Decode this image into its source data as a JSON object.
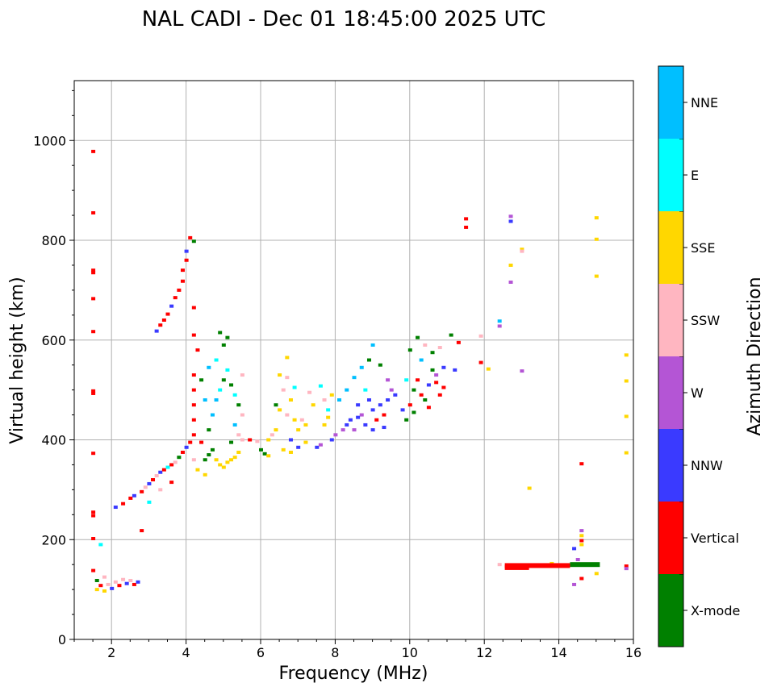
{
  "chart_data": {
    "type": "scatter",
    "title": "NAL CADI - Dec 01 18:45:00 2025 UTC",
    "xlabel": "Frequency (MHz)",
    "ylabel": "Virtual height (km)",
    "xlim": [
      1,
      16
    ],
    "ylim": [
      0,
      1120
    ],
    "xticks": [
      2,
      4,
      6,
      8,
      10,
      12,
      14,
      16
    ],
    "yticks": [
      0,
      200,
      400,
      600,
      800,
      1000
    ],
    "grid": true,
    "colorbar": {
      "label": "Azimuth Direction",
      "categories": [
        {
          "name": "X-mode",
          "color": "#008000"
        },
        {
          "name": "Vertical",
          "color": "#ff0000"
        },
        {
          "name": "NNW",
          "color": "#3a3aff"
        },
        {
          "name": "W",
          "color": "#b455d5"
        },
        {
          "name": "SSW",
          "color": "#ffb6c1"
        },
        {
          "name": "SSE",
          "color": "#ffd700"
        },
        {
          "name": "E",
          "color": "#00ffff"
        },
        {
          "name": "NNE",
          "color": "#00bfff"
        }
      ]
    },
    "points": [
      {
        "f": 1.5,
        "h": 978,
        "c": "Vertical"
      },
      {
        "f": 1.5,
        "h": 855,
        "c": "Vertical"
      },
      {
        "f": 1.5,
        "h": 740,
        "c": "Vertical"
      },
      {
        "f": 1.5,
        "h": 735,
        "c": "Vertical"
      },
      {
        "f": 1.5,
        "h": 617,
        "c": "Vertical"
      },
      {
        "f": 1.5,
        "h": 498,
        "c": "Vertical"
      },
      {
        "f": 1.5,
        "h": 493,
        "c": "Vertical"
      },
      {
        "f": 1.5,
        "h": 373,
        "c": "Vertical"
      },
      {
        "f": 1.5,
        "h": 255,
        "c": "Vertical"
      },
      {
        "f": 1.5,
        "h": 248,
        "c": "Vertical"
      },
      {
        "f": 1.5,
        "h": 202,
        "c": "Vertical"
      },
      {
        "f": 1.5,
        "h": 138,
        "c": "Vertical"
      },
      {
        "f": 1.5,
        "h": 683,
        "c": "Vertical"
      },
      {
        "f": 1.6,
        "h": 100,
        "c": "SSE"
      },
      {
        "f": 1.7,
        "h": 108,
        "c": "Vertical"
      },
      {
        "f": 1.8,
        "h": 97,
        "c": "SSE"
      },
      {
        "f": 1.9,
        "h": 110,
        "c": "SSW"
      },
      {
        "f": 2.0,
        "h": 102,
        "c": "NNW"
      },
      {
        "f": 2.1,
        "h": 115,
        "c": "SSW"
      },
      {
        "f": 2.2,
        "h": 108,
        "c": "Vertical"
      },
      {
        "f": 2.3,
        "h": 120,
        "c": "SSW"
      },
      {
        "f": 2.4,
        "h": 112,
        "c": "NNW"
      },
      {
        "f": 2.5,
        "h": 118,
        "c": "SSW"
      },
      {
        "f": 2.6,
        "h": 110,
        "c": "Vertical"
      },
      {
        "f": 2.7,
        "h": 115,
        "c": "NNW"
      },
      {
        "f": 1.7,
        "h": 190,
        "c": "E"
      },
      {
        "f": 1.6,
        "h": 118,
        "c": "X-mode"
      },
      {
        "f": 1.8,
        "h": 125,
        "c": "SSW"
      },
      {
        "f": 2.1,
        "h": 265,
        "c": "NNW"
      },
      {
        "f": 2.3,
        "h": 272,
        "c": "Vertical"
      },
      {
        "f": 2.5,
        "h": 283,
        "c": "Vertical"
      },
      {
        "f": 2.6,
        "h": 288,
        "c": "NNW"
      },
      {
        "f": 2.8,
        "h": 296,
        "c": "Vertical"
      },
      {
        "f": 2.9,
        "h": 305,
        "c": "SSW"
      },
      {
        "f": 3.0,
        "h": 312,
        "c": "NNW"
      },
      {
        "f": 3.1,
        "h": 320,
        "c": "Vertical"
      },
      {
        "f": 3.2,
        "h": 328,
        "c": "SSW"
      },
      {
        "f": 3.3,
        "h": 335,
        "c": "NNW"
      },
      {
        "f": 3.4,
        "h": 340,
        "c": "Vertical"
      },
      {
        "f": 3.5,
        "h": 345,
        "c": "E"
      },
      {
        "f": 3.6,
        "h": 350,
        "c": "Vertical"
      },
      {
        "f": 3.7,
        "h": 355,
        "c": "SSW"
      },
      {
        "f": 3.8,
        "h": 365,
        "c": "X-mode"
      },
      {
        "f": 3.9,
        "h": 375,
        "c": "Vertical"
      },
      {
        "f": 4.0,
        "h": 385,
        "c": "NNW"
      },
      {
        "f": 3.0,
        "h": 275,
        "c": "E"
      },
      {
        "f": 2.8,
        "h": 218,
        "c": "Vertical"
      },
      {
        "f": 3.3,
        "h": 300,
        "c": "SSW"
      },
      {
        "f": 3.6,
        "h": 315,
        "c": "Vertical"
      },
      {
        "f": 3.2,
        "h": 618,
        "c": "NNW"
      },
      {
        "f": 3.3,
        "h": 630,
        "c": "Vertical"
      },
      {
        "f": 3.4,
        "h": 640,
        "c": "Vertical"
      },
      {
        "f": 3.5,
        "h": 652,
        "c": "Vertical"
      },
      {
        "f": 3.6,
        "h": 668,
        "c": "NNW"
      },
      {
        "f": 3.7,
        "h": 685,
        "c": "Vertical"
      },
      {
        "f": 3.8,
        "h": 700,
        "c": "Vertical"
      },
      {
        "f": 3.9,
        "h": 718,
        "c": "Vertical"
      },
      {
        "f": 3.9,
        "h": 740,
        "c": "Vertical"
      },
      {
        "f": 4.0,
        "h": 760,
        "c": "Vertical"
      },
      {
        "f": 4.0,
        "h": 778,
        "c": "NNW"
      },
      {
        "f": 4.1,
        "h": 805,
        "c": "Vertical"
      },
      {
        "f": 4.2,
        "h": 798,
        "c": "X-mode"
      },
      {
        "f": 4.2,
        "h": 665,
        "c": "Vertical"
      },
      {
        "f": 4.2,
        "h": 610,
        "c": "Vertical"
      },
      {
        "f": 4.3,
        "h": 580,
        "c": "Vertical"
      },
      {
        "f": 4.2,
        "h": 530,
        "c": "Vertical"
      },
      {
        "f": 4.2,
        "h": 500,
        "c": "Vertical"
      },
      {
        "f": 4.2,
        "h": 470,
        "c": "Vertical"
      },
      {
        "f": 4.2,
        "h": 440,
        "c": "Vertical"
      },
      {
        "f": 4.2,
        "h": 410,
        "c": "Vertical"
      },
      {
        "f": 4.1,
        "h": 395,
        "c": "Vertical"
      },
      {
        "f": 4.2,
        "h": 360,
        "c": "SSW"
      },
      {
        "f": 4.3,
        "h": 340,
        "c": "SSE"
      },
      {
        "f": 4.4,
        "h": 395,
        "c": "Vertical"
      },
      {
        "f": 4.5,
        "h": 360,
        "c": "X-mode"
      },
      {
        "f": 4.6,
        "h": 370,
        "c": "X-mode"
      },
      {
        "f": 4.7,
        "h": 380,
        "c": "X-mode"
      },
      {
        "f": 4.8,
        "h": 360,
        "c": "SSE"
      },
      {
        "f": 4.9,
        "h": 350,
        "c": "SSE"
      },
      {
        "f": 5.0,
        "h": 345,
        "c": "SSE"
      },
      {
        "f": 5.1,
        "h": 355,
        "c": "SSE"
      },
      {
        "f": 5.2,
        "h": 360,
        "c": "SSE"
      },
      {
        "f": 5.3,
        "h": 365,
        "c": "SSE"
      },
      {
        "f": 5.4,
        "h": 375,
        "c": "SSE"
      },
      {
        "f": 4.6,
        "h": 420,
        "c": "X-mode"
      },
      {
        "f": 4.7,
        "h": 450,
        "c": "NNE"
      },
      {
        "f": 4.8,
        "h": 480,
        "c": "NNE"
      },
      {
        "f": 4.9,
        "h": 500,
        "c": "E"
      },
      {
        "f": 5.0,
        "h": 520,
        "c": "X-mode"
      },
      {
        "f": 5.1,
        "h": 540,
        "c": "E"
      },
      {
        "f": 5.2,
        "h": 510,
        "c": "X-mode"
      },
      {
        "f": 5.3,
        "h": 490,
        "c": "E"
      },
      {
        "f": 5.4,
        "h": 470,
        "c": "X-mode"
      },
      {
        "f": 5.5,
        "h": 450,
        "c": "SSW"
      },
      {
        "f": 4.8,
        "h": 560,
        "c": "E"
      },
      {
        "f": 5.0,
        "h": 590,
        "c": "X-mode"
      },
      {
        "f": 5.1,
        "h": 605,
        "c": "X-mode"
      },
      {
        "f": 4.9,
        "h": 615,
        "c": "X-mode"
      },
      {
        "f": 5.3,
        "h": 430,
        "c": "NNE"
      },
      {
        "f": 5.4,
        "h": 410,
        "c": "SSW"
      },
      {
        "f": 5.2,
        "h": 395,
        "c": "X-mode"
      },
      {
        "f": 4.5,
        "h": 330,
        "c": "SSE"
      },
      {
        "f": 4.5,
        "h": 480,
        "c": "NNE"
      },
      {
        "f": 4.6,
        "h": 545,
        "c": "NNE"
      },
      {
        "f": 5.5,
        "h": 400,
        "c": "SSW"
      },
      {
        "f": 5.5,
        "h": 530,
        "c": "SSW"
      },
      {
        "f": 4.4,
        "h": 520,
        "c": "X-mode"
      },
      {
        "f": 5.7,
        "h": 400,
        "c": "Vertical"
      },
      {
        "f": 5.9,
        "h": 397,
        "c": "SSW"
      },
      {
        "f": 6.0,
        "h": 380,
        "c": "X-mode"
      },
      {
        "f": 6.1,
        "h": 372,
        "c": "X-mode"
      },
      {
        "f": 6.2,
        "h": 368,
        "c": "SSE"
      },
      {
        "f": 6.3,
        "h": 410,
        "c": "SSW"
      },
      {
        "f": 6.4,
        "h": 420,
        "c": "SSE"
      },
      {
        "f": 6.5,
        "h": 460,
        "c": "SSE"
      },
      {
        "f": 6.6,
        "h": 500,
        "c": "SSW"
      },
      {
        "f": 6.7,
        "h": 525,
        "c": "SSW"
      },
      {
        "f": 6.8,
        "h": 480,
        "c": "SSE"
      },
      {
        "f": 6.9,
        "h": 440,
        "c": "SSE"
      },
      {
        "f": 7.0,
        "h": 420,
        "c": "SSE"
      },
      {
        "f": 7.1,
        "h": 440,
        "c": "SSW"
      },
      {
        "f": 7.2,
        "h": 430,
        "c": "SSE"
      },
      {
        "f": 6.6,
        "h": 380,
        "c": "SSE"
      },
      {
        "f": 6.8,
        "h": 375,
        "c": "SSE"
      },
      {
        "f": 7.0,
        "h": 385,
        "c": "NNW"
      },
      {
        "f": 7.2,
        "h": 395,
        "c": "SSE"
      },
      {
        "f": 6.5,
        "h": 530,
        "c": "SSE"
      },
      {
        "f": 6.7,
        "h": 565,
        "c": "SSE"
      },
      {
        "f": 6.9,
        "h": 505,
        "c": "E"
      },
      {
        "f": 6.4,
        "h": 470,
        "c": "X-mode"
      },
      {
        "f": 6.2,
        "h": 400,
        "c": "SSE"
      },
      {
        "f": 6.8,
        "h": 400,
        "c": "NNW"
      },
      {
        "f": 6.7,
        "h": 450,
        "c": "SSW"
      },
      {
        "f": 7.3,
        "h": 495,
        "c": "SSW"
      },
      {
        "f": 7.4,
        "h": 470,
        "c": "SSE"
      },
      {
        "f": 7.5,
        "h": 385,
        "c": "NNW"
      },
      {
        "f": 7.6,
        "h": 390,
        "c": "W"
      },
      {
        "f": 7.7,
        "h": 430,
        "c": "SSE"
      },
      {
        "f": 7.8,
        "h": 460,
        "c": "E"
      },
      {
        "f": 7.9,
        "h": 490,
        "c": "SSE"
      },
      {
        "f": 8.0,
        "h": 410,
        "c": "W"
      },
      {
        "f": 7.9,
        "h": 400,
        "c": "NNW"
      },
      {
        "f": 7.6,
        "h": 508,
        "c": "E"
      },
      {
        "f": 7.8,
        "h": 445,
        "c": "SSE"
      },
      {
        "f": 7.7,
        "h": 480,
        "c": "SSW"
      },
      {
        "f": 8.2,
        "h": 420,
        "c": "W"
      },
      {
        "f": 8.3,
        "h": 430,
        "c": "NNW"
      },
      {
        "f": 8.4,
        "h": 440,
        "c": "NNW"
      },
      {
        "f": 8.5,
        "h": 420,
        "c": "W"
      },
      {
        "f": 8.6,
        "h": 470,
        "c": "NNW"
      },
      {
        "f": 8.7,
        "h": 450,
        "c": "W"
      },
      {
        "f": 8.8,
        "h": 500,
        "c": "E"
      },
      {
        "f": 8.9,
        "h": 480,
        "c": "NNW"
      },
      {
        "f": 9.0,
        "h": 460,
        "c": "NNW"
      },
      {
        "f": 9.1,
        "h": 440,
        "c": "Vertical"
      },
      {
        "f": 9.2,
        "h": 470,
        "c": "NNW"
      },
      {
        "f": 9.3,
        "h": 450,
        "c": "Vertical"
      },
      {
        "f": 9.4,
        "h": 480,
        "c": "NNW"
      },
      {
        "f": 9.5,
        "h": 500,
        "c": "W"
      },
      {
        "f": 8.5,
        "h": 525,
        "c": "NNE"
      },
      {
        "f": 8.7,
        "h": 545,
        "c": "NNE"
      },
      {
        "f": 8.9,
        "h": 560,
        "c": "X-mode"
      },
      {
        "f": 9.0,
        "h": 590,
        "c": "NNE"
      },
      {
        "f": 9.2,
        "h": 550,
        "c": "X-mode"
      },
      {
        "f": 9.4,
        "h": 520,
        "c": "W"
      },
      {
        "f": 8.3,
        "h": 500,
        "c": "NNE"
      },
      {
        "f": 8.6,
        "h": 445,
        "c": "NNW"
      },
      {
        "f": 8.8,
        "h": 430,
        "c": "NNW"
      },
      {
        "f": 9.0,
        "h": 420,
        "c": "NNW"
      },
      {
        "f": 9.3,
        "h": 425,
        "c": "NNW"
      },
      {
        "f": 8.1,
        "h": 480,
        "c": "NNE"
      },
      {
        "f": 9.6,
        "h": 490,
        "c": "NNW"
      },
      {
        "f": 9.8,
        "h": 460,
        "c": "NNW"
      },
      {
        "f": 9.9,
        "h": 440,
        "c": "X-mode"
      },
      {
        "f": 10.0,
        "h": 470,
        "c": "Vertical"
      },
      {
        "f": 10.1,
        "h": 500,
        "c": "X-mode"
      },
      {
        "f": 10.2,
        "h": 520,
        "c": "Vertical"
      },
      {
        "f": 10.3,
        "h": 490,
        "c": "Vertical"
      },
      {
        "f": 10.4,
        "h": 480,
        "c": "X-mode"
      },
      {
        "f": 10.5,
        "h": 510,
        "c": "NNW"
      },
      {
        "f": 10.6,
        "h": 540,
        "c": "X-mode"
      },
      {
        "f": 10.7,
        "h": 530,
        "c": "W"
      },
      {
        "f": 10.8,
        "h": 490,
        "c": "Vertical"
      },
      {
        "f": 10.9,
        "h": 545,
        "c": "NNW"
      },
      {
        "f": 10.0,
        "h": 580,
        "c": "X-mode"
      },
      {
        "f": 10.2,
        "h": 605,
        "c": "X-mode"
      },
      {
        "f": 10.4,
        "h": 590,
        "c": "SSW"
      },
      {
        "f": 10.6,
        "h": 575,
        "c": "X-mode"
      },
      {
        "f": 10.8,
        "h": 585,
        "c": "SSW"
      },
      {
        "f": 11.1,
        "h": 610,
        "c": "X-mode"
      },
      {
        "f": 11.2,
        "h": 540,
        "c": "NNW"
      },
      {
        "f": 11.3,
        "h": 595,
        "c": "Vertical"
      },
      {
        "f": 9.9,
        "h": 520,
        "c": "E"
      },
      {
        "f": 10.3,
        "h": 560,
        "c": "NNE"
      },
      {
        "f": 10.7,
        "h": 515,
        "c": "Vertical"
      },
      {
        "f": 10.5,
        "h": 465,
        "c": "Vertical"
      },
      {
        "f": 10.1,
        "h": 455,
        "c": "X-mode"
      },
      {
        "f": 10.9,
        "h": 505,
        "c": "Vertical"
      },
      {
        "f": 11.5,
        "h": 843,
        "c": "Vertical"
      },
      {
        "f": 11.5,
        "h": 826,
        "c": "Vertical"
      },
      {
        "f": 11.9,
        "h": 608,
        "c": "SSW"
      },
      {
        "f": 11.9,
        "h": 555,
        "c": "Vertical"
      },
      {
        "f": 12.1,
        "h": 542,
        "c": "SSE"
      },
      {
        "f": 12.4,
        "h": 638,
        "c": "NNE"
      },
      {
        "f": 12.4,
        "h": 628,
        "c": "W"
      },
      {
        "f": 12.7,
        "h": 848,
        "c": "W"
      },
      {
        "f": 12.7,
        "h": 838,
        "c": "NNW"
      },
      {
        "f": 12.7,
        "h": 750,
        "c": "SSE"
      },
      {
        "f": 12.7,
        "h": 716,
        "c": "W"
      },
      {
        "f": 13.0,
        "h": 782,
        "c": "SSE"
      },
      {
        "f": 13.0,
        "h": 778,
        "c": "SSW"
      },
      {
        "f": 13.0,
        "h": 538,
        "c": "W"
      },
      {
        "f": 13.2,
        "h": 303,
        "c": "SSE"
      },
      {
        "f": 15.0,
        "h": 845,
        "c": "SSE"
      },
      {
        "f": 15.0,
        "h": 802,
        "c": "SSE"
      },
      {
        "f": 15.0,
        "h": 728,
        "c": "SSE"
      },
      {
        "f": 15.8,
        "h": 570,
        "c": "SSE"
      },
      {
        "f": 15.8,
        "h": 518,
        "c": "SSE"
      },
      {
        "f": 15.8,
        "h": 447,
        "c": "SSE"
      },
      {
        "f": 15.8,
        "h": 374,
        "c": "SSE"
      },
      {
        "f": 14.6,
        "h": 352,
        "c": "Vertical"
      },
      {
        "f": 14.6,
        "h": 218,
        "c": "W"
      },
      {
        "f": 14.6,
        "h": 208,
        "c": "SSE"
      },
      {
        "f": 14.6,
        "h": 198,
        "c": "Vertical"
      },
      {
        "f": 14.6,
        "h": 190,
        "c": "SSE"
      },
      {
        "f": 14.4,
        "h": 182,
        "c": "NNW"
      },
      {
        "f": 14.6,
        "h": 122,
        "c": "Vertical"
      },
      {
        "f": 14.4,
        "h": 110,
        "c": "W"
      },
      {
        "f": 15.0,
        "h": 132,
        "c": "SSE"
      },
      {
        "f": 14.5,
        "h": 160,
        "c": "W"
      },
      {
        "f": 13.8,
        "h": 152,
        "c": "SSE"
      },
      {
        "f": 15.8,
        "h": 147,
        "c": "Vertical"
      },
      {
        "f": 15.8,
        "h": 142,
        "c": "W"
      },
      {
        "f": 12.4,
        "h": 150,
        "c": "SSW"
      }
    ],
    "bands": [
      {
        "f0": 12.55,
        "f1": 14.3,
        "h": 148,
        "c": "Vertical"
      },
      {
        "f0": 14.3,
        "f1": 15.1,
        "h": 150,
        "c": "X-mode"
      },
      {
        "f0": 12.55,
        "f1": 13.2,
        "h": 144,
        "c": "Vertical"
      }
    ]
  }
}
